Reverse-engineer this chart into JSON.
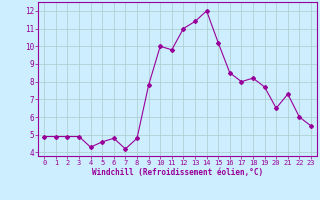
{
  "x": [
    0,
    1,
    2,
    3,
    4,
    5,
    6,
    7,
    8,
    9,
    10,
    11,
    12,
    13,
    14,
    15,
    16,
    17,
    18,
    19,
    20,
    21,
    22,
    23
  ],
  "y": [
    4.9,
    4.9,
    4.9,
    4.9,
    4.3,
    4.6,
    4.8,
    4.2,
    4.8,
    7.8,
    10.0,
    9.8,
    11.0,
    11.4,
    12.0,
    10.2,
    8.5,
    8.0,
    8.2,
    7.7,
    6.5,
    7.3,
    6.0,
    5.5
  ],
  "line_color": "#990099",
  "marker": "D",
  "marker_size": 2,
  "bg_color": "#cceeff",
  "grid_color": "#aacccc",
  "xlabel": "Windchill (Refroidissement éolien,°C)",
  "xlabel_color": "#990099",
  "tick_color": "#990099",
  "label_color": "#990099",
  "ylim": [
    3.8,
    12.5
  ],
  "xlim": [
    -0.5,
    23.5
  ],
  "yticks": [
    4,
    5,
    6,
    7,
    8,
    9,
    10,
    11,
    12
  ],
  "xticks": [
    0,
    1,
    2,
    3,
    4,
    5,
    6,
    7,
    8,
    9,
    10,
    11,
    12,
    13,
    14,
    15,
    16,
    17,
    18,
    19,
    20,
    21,
    22,
    23
  ]
}
